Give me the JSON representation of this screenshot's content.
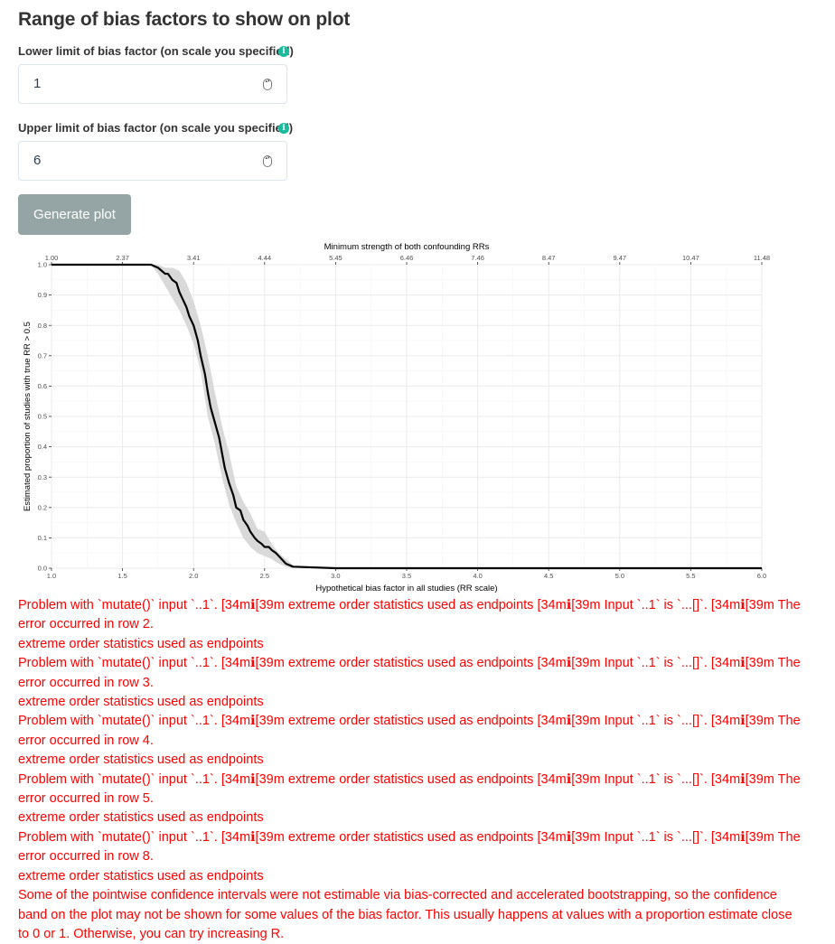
{
  "section_title": "Range of bias factors to show on plot",
  "lower": {
    "label": "Lower limit of bias factor (on scale you specified)",
    "value": "1"
  },
  "upper": {
    "label": "Upper limit of bias factor (on scale you specified)",
    "value": "6"
  },
  "info_glyph": "i",
  "stepper_glyph": "▴▾",
  "button_label": "Generate plot",
  "colors": {
    "info": "#18bc9c",
    "button": "#95a5a6",
    "error": "#ff0000",
    "band": "#d9d9d9"
  },
  "chart_data": {
    "type": "line",
    "xlabel": "Hypothetical bias factor in all studies (RR scale)",
    "ylabel": "Estimated proportion of studies with true RR > 0.5",
    "top_axis_title": "Minimum strength of both confounding RRs",
    "xlim": [
      1,
      6
    ],
    "ylim": [
      0,
      1
    ],
    "x_ticks": [
      1.0,
      1.5,
      2.0,
      2.5,
      3.0,
      3.5,
      4.0,
      4.5,
      5.0,
      5.5,
      6.0
    ],
    "x_tick_labels": [
      "1.0",
      "1.5",
      "2.0",
      "2.5",
      "3.0",
      "3.5",
      "4.0",
      "4.5",
      "5.0",
      "5.5",
      "6.0"
    ],
    "y_ticks": [
      0,
      0.1,
      0.2,
      0.3,
      0.4,
      0.5,
      0.6,
      0.7,
      0.8,
      0.9,
      1.0
    ],
    "y_tick_labels": [
      "0.0",
      "0.1",
      "0.2",
      "0.3",
      "0.4",
      "0.5",
      "0.6",
      "0.7",
      "0.8",
      "0.9",
      "1.0"
    ],
    "top_tick_labels": [
      "1.00",
      "2.37",
      "3.41",
      "4.44",
      "5.45",
      "6.46",
      "7.46",
      "8.47",
      "9.47",
      "10.47",
      "11.48"
    ],
    "series": [
      {
        "x": [
          1.0,
          1.7,
          1.75,
          1.8,
          1.82,
          1.85,
          1.88,
          1.9,
          1.93,
          1.95,
          1.97,
          2.0,
          2.03,
          2.05,
          2.08,
          2.1,
          2.12,
          2.15,
          2.18,
          2.2,
          2.22,
          2.25,
          2.28,
          2.3,
          2.33,
          2.35,
          2.38,
          2.4,
          2.43,
          2.45,
          2.48,
          2.5,
          2.53,
          2.55,
          2.58,
          2.6,
          2.63,
          2.65,
          2.7,
          3.0,
          6.0
        ],
        "y": [
          1.0,
          1.0,
          0.99,
          0.97,
          0.97,
          0.95,
          0.94,
          0.91,
          0.88,
          0.86,
          0.83,
          0.8,
          0.75,
          0.7,
          0.64,
          0.58,
          0.53,
          0.48,
          0.43,
          0.38,
          0.33,
          0.28,
          0.24,
          0.2,
          0.19,
          0.16,
          0.14,
          0.12,
          0.1,
          0.09,
          0.08,
          0.07,
          0.07,
          0.06,
          0.05,
          0.04,
          0.025,
          0.015,
          0.005,
          0.0,
          0.0
        ]
      }
    ],
    "band": {
      "x": [
        1.7,
        1.75,
        1.8,
        1.85,
        1.9,
        1.95,
        2.0,
        2.05,
        2.1,
        2.15,
        2.2,
        2.25,
        2.3,
        2.35,
        2.4,
        2.45,
        2.5,
        2.55,
        2.6,
        2.65,
        2.7
      ],
      "lower": [
        1.0,
        0.97,
        0.93,
        0.89,
        0.85,
        0.8,
        0.74,
        0.65,
        0.5,
        0.41,
        0.3,
        0.21,
        0.15,
        0.1,
        0.07,
        0.05,
        0.04,
        0.03,
        0.015,
        0.005,
        0.0
      ],
      "upper": [
        1.0,
        1.0,
        0.99,
        0.99,
        0.98,
        0.94,
        0.88,
        0.8,
        0.7,
        0.58,
        0.47,
        0.38,
        0.27,
        0.22,
        0.18,
        0.13,
        0.12,
        0.08,
        0.05,
        0.03,
        0.01
      ]
    }
  },
  "errors": [
    "Problem with `mutate()` input `..1`. [34mℹ[39m extreme order statistics used as endpoints [34mℹ[39m Input `..1` is `...[]`. [34mℹ[39m The error occurred in row 2.",
    "extreme order statistics used as endpoints",
    "Problem with `mutate()` input `..1`. [34mℹ[39m extreme order statistics used as endpoints [34mℹ[39m Input `..1` is `...[]`. [34mℹ[39m The error occurred in row 3.",
    "extreme order statistics used as endpoints",
    "Problem with `mutate()` input `..1`. [34mℹ[39m extreme order statistics used as endpoints [34mℹ[39m Input `..1` is `...[]`. [34mℹ[39m The error occurred in row 4.",
    "extreme order statistics used as endpoints",
    "Problem with `mutate()` input `..1`. [34mℹ[39m extreme order statistics used as endpoints [34mℹ[39m Input `..1` is `...[]`. [34mℹ[39m The error occurred in row 5.",
    "extreme order statistics used as endpoints",
    "Problem with `mutate()` input `..1`. [34mℹ[39m extreme order statistics used as endpoints [34mℹ[39m Input `..1` is `...[]`. [34mℹ[39m The error occurred in row 8.",
    "extreme order statistics used as endpoints",
    "Some of the pointwise confidence intervals were not estimable via bias-corrected and accelerated bootstrapping, so the confidence band on the plot may not be shown for some values of the bias factor. This usually happens at values with a proportion estimate close to 0 or 1. Otherwise, you can try increasing R."
  ]
}
